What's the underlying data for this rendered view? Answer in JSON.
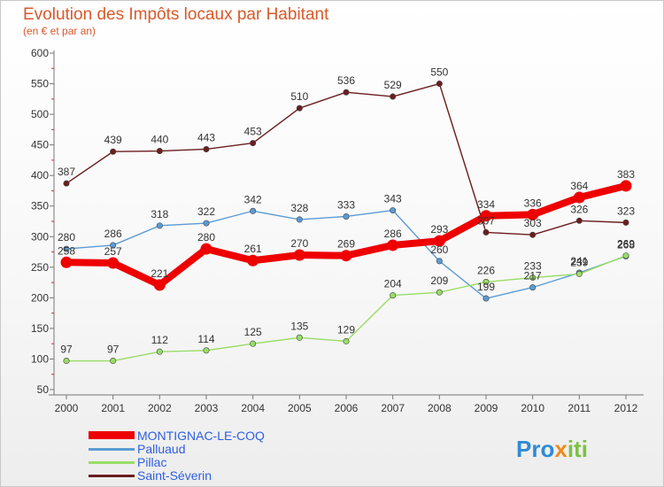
{
  "chart_data": {
    "type": "line",
    "title": "Evolution des Impôts locaux par Habitant",
    "subtitle": "(en € et par an)",
    "xlabel": "",
    "ylabel": "",
    "x": [
      "2000",
      "2001",
      "2002",
      "2003",
      "2004",
      "2005",
      "2006",
      "2007",
      "2008",
      "2009",
      "2010",
      "2011",
      "2012"
    ],
    "ylim": [
      50,
      600
    ],
    "yticks": [
      50,
      100,
      150,
      200,
      250,
      300,
      350,
      400,
      450,
      500,
      550,
      600
    ],
    "grid": false,
    "legend_position": "bottom-left",
    "series": [
      {
        "name": "Saint-Séverin",
        "color": "#6b1d1d",
        "values": [
          387,
          439,
          440,
          443,
          453,
          510,
          536,
          529,
          550,
          307,
          303,
          326,
          323
        ]
      },
      {
        "name": "Palluaud",
        "color": "#5b9bd5",
        "values": [
          280,
          286,
          318,
          322,
          342,
          328,
          333,
          343,
          260,
          199,
          217,
          241,
          268
        ]
      },
      {
        "name": "Pillac",
        "color": "#99dd66",
        "values": [
          97,
          97,
          112,
          114,
          125,
          135,
          129,
          204,
          209,
          226,
          233,
          239,
          269
        ]
      },
      {
        "name": "MONTIGNAC-LE-COQ",
        "color": "#ee0000",
        "values": [
          258,
          257,
          221,
          280,
          261,
          270,
          269,
          286,
          293,
          334,
          336,
          364,
          383
        ]
      }
    ],
    "brand": "Proxiti"
  }
}
